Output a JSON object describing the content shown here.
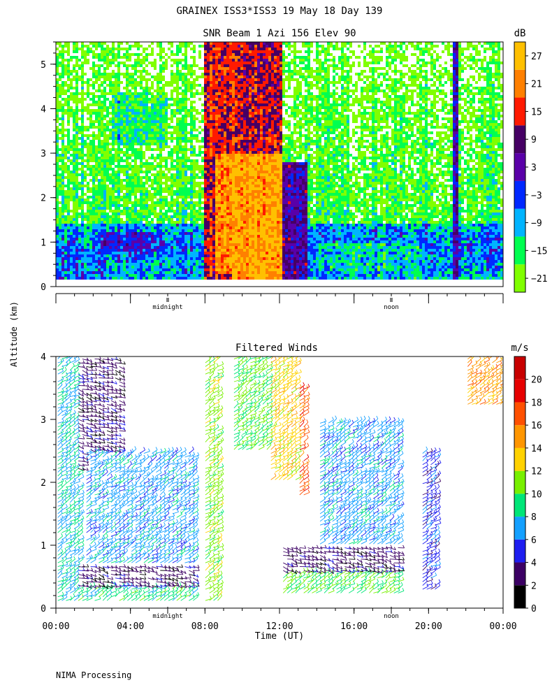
{
  "header": {
    "title": "GRAINEX ISS3*ISS3  19 May 18 Day 139"
  },
  "footer": {
    "processing": "NIMA Processing"
  },
  "shared": {
    "ylabel": "Altitude (km)",
    "xlabel": "Time (UT)"
  },
  "chart_data": [
    {
      "type": "heatmap",
      "title": "SNR Beam 1 Azi 156 Elev 90",
      "ylabel": "Altitude (km)",
      "ylim": [
        0,
        5.5
      ],
      "yticks": [
        0,
        1,
        2,
        3,
        4,
        5
      ],
      "xlim": [
        0,
        24
      ],
      "time_markers": [
        {
          "label": "midnight",
          "hour": 6
        },
        {
          "label": "noon",
          "hour": 18
        }
      ],
      "colorbar": {
        "unit": "dB",
        "levels": [
          -24,
          -18,
          -12,
          -6,
          0,
          6,
          12,
          18,
          24,
          30
        ],
        "labels": [
          "27",
          "21",
          "15",
          "9",
          "3",
          "−3",
          "−9",
          "−15",
          "−21"
        ],
        "label_values": [
          27,
          21,
          15,
          9,
          3,
          -3,
          -9,
          -15,
          -21
        ],
        "colors": [
          "#80ff00",
          "#00ff50",
          "#00b4ff",
          "#0028ff",
          "#5a00a8",
          "#460064",
          "#ff1a00",
          "#ff8000",
          "#ffc000"
        ]
      },
      "regions": [
        {
          "x0": 0.0,
          "x1": 2.5,
          "y0": 0.15,
          "y1": 0.6,
          "value": -6
        },
        {
          "x0": 2.5,
          "x1": 5.8,
          "y0": 0.8,
          "y1": 1.2,
          "value": 0
        },
        {
          "x0": 8.0,
          "x1": 10.0,
          "y0": 0.15,
          "y1": 5.5,
          "value": 14
        },
        {
          "x0": 8.5,
          "x1": 9.5,
          "y0": 0.3,
          "y1": 3.0,
          "value": 22
        },
        {
          "x0": 9.5,
          "x1": 12.2,
          "y0": 0.15,
          "y1": 3.0,
          "value": 25
        },
        {
          "x0": 10.0,
          "x1": 12.2,
          "y0": 3.0,
          "y1": 5.5,
          "value": 12
        },
        {
          "x0": 12.2,
          "x1": 13.5,
          "y0": 0.15,
          "y1": 2.8,
          "value": 5
        },
        {
          "x0": 21.3,
          "x1": 21.6,
          "y0": 0.15,
          "y1": 5.5,
          "value": 2
        }
      ]
    },
    {
      "type": "barbs",
      "title": "Filtered Winds",
      "ylabel": "Altitude (km)",
      "xlabel": "Time (UT)",
      "ylim": [
        0,
        4
      ],
      "yticks": [
        0,
        1,
        2,
        3,
        4
      ],
      "xlim": [
        0,
        24
      ],
      "xtick_labels": [
        "00:00",
        "04:00",
        "08:00",
        "12:00",
        "16:00",
        "20:00",
        "00:00"
      ],
      "xtick_hours": [
        0,
        4,
        8,
        12,
        16,
        20,
        24
      ],
      "time_markers": [
        {
          "label": "midnight",
          "hour": 6
        },
        {
          "label": "noon",
          "hour": 18
        }
      ],
      "colorbar": {
        "unit": "m/s",
        "levels": [
          0,
          2,
          4,
          6,
          8,
          10,
          12,
          14,
          16,
          18,
          20,
          22
        ],
        "labels": [
          "20",
          "18",
          "16",
          "14",
          "12",
          "10",
          "8",
          "6",
          "4",
          "2",
          "0"
        ],
        "label_values": [
          20,
          18,
          16,
          14,
          12,
          10,
          8,
          6,
          4,
          2,
          0
        ],
        "colors": [
          "#000000",
          "#3c0064",
          "#1e1ef0",
          "#14a0ff",
          "#00e678",
          "#78f000",
          "#ffd200",
          "#ff9600",
          "#ff5000",
          "#e60000",
          "#c80000"
        ]
      },
      "wind_regions": [
        {
          "x0": 0.0,
          "x1": 1.2,
          "y0": 0.1,
          "y1": 4.0,
          "speed": 8
        },
        {
          "x0": 1.2,
          "x1": 3.5,
          "y0": 2.2,
          "y1": 4.0,
          "speed": 3
        },
        {
          "x0": 1.5,
          "x1": 7.5,
          "y0": 0.7,
          "y1": 2.5,
          "speed": 7
        },
        {
          "x0": 1.0,
          "x1": 7.5,
          "y0": 0.3,
          "y1": 0.7,
          "speed": 3
        },
        {
          "x0": 1.0,
          "x1": 7.5,
          "y0": 0.1,
          "y1": 0.3,
          "speed": 9
        },
        {
          "x0": 8.0,
          "x1": 8.8,
          "y0": 0.1,
          "y1": 4.0,
          "speed": 11
        },
        {
          "x0": 9.5,
          "x1": 11.5,
          "y0": 2.5,
          "y1": 4.0,
          "speed": 10
        },
        {
          "x0": 11.5,
          "x1": 13.0,
          "y0": 2.0,
          "y1": 4.0,
          "speed": 13
        },
        {
          "x0": 13.0,
          "x1": 13.5,
          "y0": 1.8,
          "y1": 3.5,
          "speed": 17
        },
        {
          "x0": 12.0,
          "x1": 18.5,
          "y0": 0.2,
          "y1": 0.6,
          "speed": 10
        },
        {
          "x0": 12.0,
          "x1": 18.5,
          "y0": 0.6,
          "y1": 1.0,
          "speed": 3
        },
        {
          "x0": 14.0,
          "x1": 18.5,
          "y0": 1.0,
          "y1": 3.0,
          "speed": 7
        },
        {
          "x0": 19.5,
          "x1": 20.5,
          "y0": 0.3,
          "y1": 2.5,
          "speed": 5
        },
        {
          "x0": 22.0,
          "x1": 24.0,
          "y0": 3.2,
          "y1": 4.0,
          "speed": 15
        }
      ]
    }
  ]
}
